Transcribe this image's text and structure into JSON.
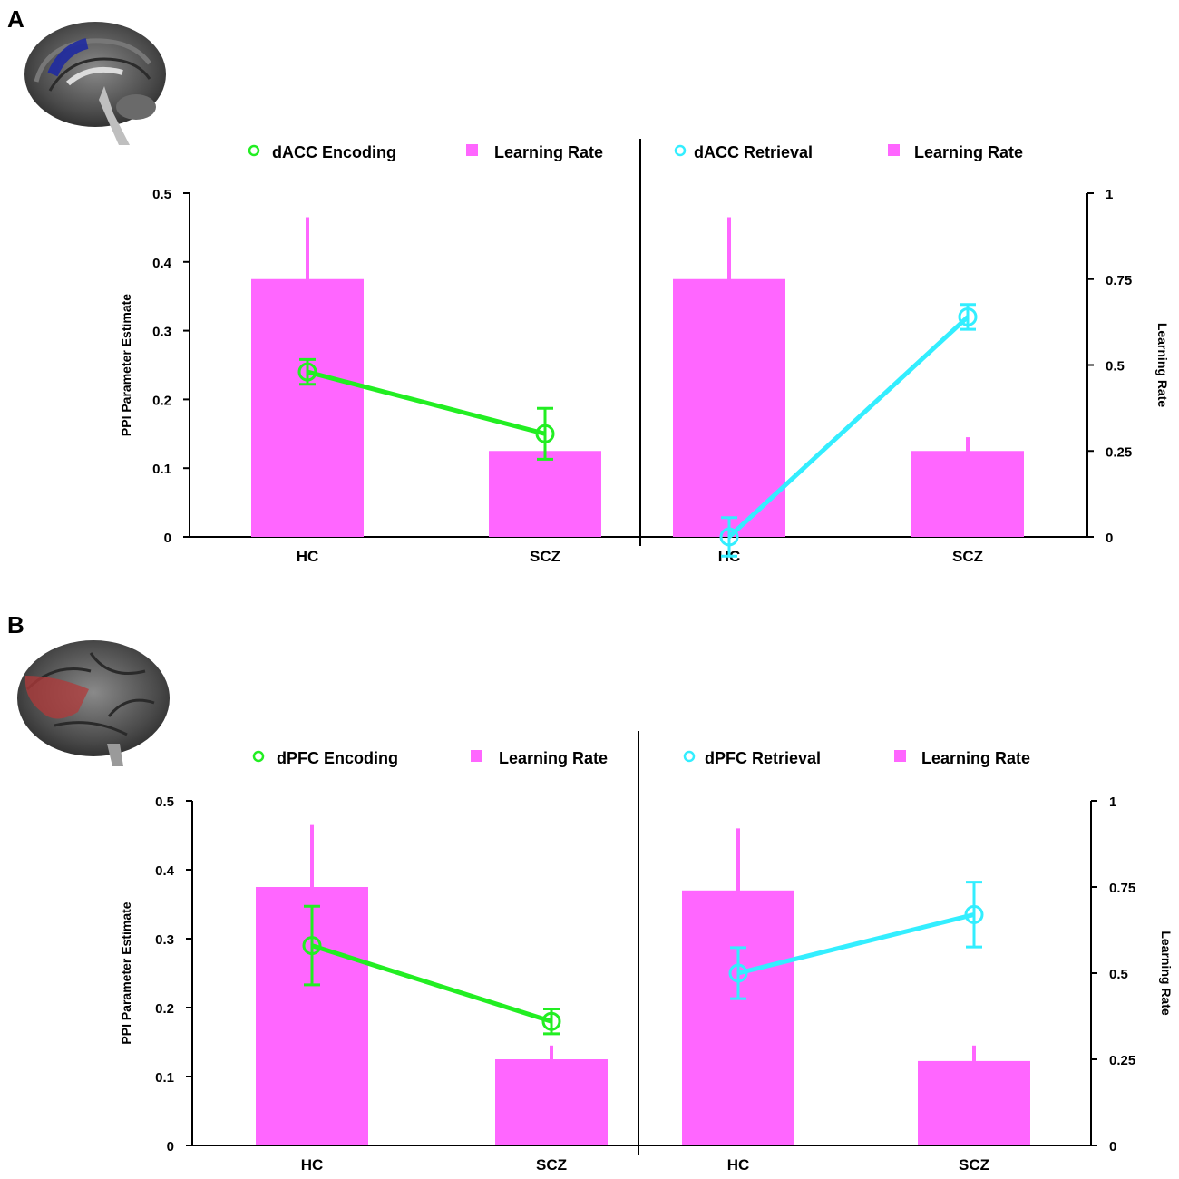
{
  "figure": {
    "panel_labels": [
      "A",
      "B"
    ]
  },
  "colors": {
    "bar": "#ff66ff",
    "encoding": "#22ee22",
    "retrieval": "#33eeff",
    "axis": "#000000"
  },
  "chart_data": [
    {
      "panel": "A",
      "type": "bar",
      "brain_region_icon": "medial-brain-dacc-icon",
      "categories": [
        "HC",
        "SCZ",
        "HC",
        "SCZ"
      ],
      "left_axis": {
        "title": "PPI Parameter Estimate",
        "ylim": [
          0,
          0.5
        ],
        "ticks": [
          "0",
          "0.1",
          "0.2",
          "0.3",
          "0.4",
          "0.5"
        ]
      },
      "right_axis": {
        "title": "Learning Rate",
        "ylim": [
          0,
          1
        ],
        "ticks": [
          "0",
          "0.25",
          "0.5",
          "0.75",
          "1"
        ]
      },
      "subplots": [
        {
          "line_legend": "dACC Encoding",
          "bar_legend": "Learning Rate",
          "line_color_key": "encoding",
          "bars": [
            {
              "value": 0.75,
              "err_low": 0.57,
              "err_high": 0.93
            },
            {
              "value": 0.25,
              "err_low": 0.25,
              "err_high": 0.25
            }
          ],
          "line": [
            {
              "value": 0.24,
              "err": 0.018
            },
            {
              "value": 0.15,
              "err": 0.037
            }
          ]
        },
        {
          "line_legend": "dACC Retrieval",
          "bar_legend": "Learning Rate",
          "line_color_key": "retrieval",
          "bars": [
            {
              "value": 0.75,
              "err_low": 0.57,
              "err_high": 0.93
            },
            {
              "value": 0.25,
              "err_low": 0.21,
              "err_high": 0.29
            }
          ],
          "line": [
            {
              "value": 0.0,
              "err": 0.028
            },
            {
              "value": 0.32,
              "err": 0.018
            }
          ]
        }
      ]
    },
    {
      "panel": "B",
      "type": "bar",
      "brain_region_icon": "lateral-brain-dpfc-icon",
      "categories": [
        "HC",
        "SCZ",
        "HC",
        "SCZ"
      ],
      "left_axis": {
        "title": "PPI Parameter Estimate",
        "ylim": [
          0,
          0.5
        ],
        "ticks": [
          "0",
          "0.1",
          "0.2",
          "0.3",
          "0.4",
          "0.5"
        ]
      },
      "right_axis": {
        "title": "Learning Rate",
        "ylim": [
          0,
          1
        ],
        "ticks": [
          "0",
          "0.25",
          "0.5",
          "0.75",
          "1"
        ]
      },
      "subplots": [
        {
          "line_legend": "dPFC Encoding",
          "bar_legend": "Learning Rate",
          "line_color_key": "encoding",
          "bars": [
            {
              "value": 0.75,
              "err_low": 0.57,
              "err_high": 0.93
            },
            {
              "value": 0.25,
              "err_low": 0.21,
              "err_high": 0.29
            }
          ],
          "line": [
            {
              "value": 0.29,
              "err": 0.057
            },
            {
              "value": 0.18,
              "err": 0.018
            }
          ]
        },
        {
          "line_legend": "dPFC Retrieval",
          "bar_legend": "Learning Rate",
          "line_color_key": "retrieval",
          "bars": [
            {
              "value": 0.74,
              "err_low": 0.56,
              "err_high": 0.92
            },
            {
              "value": 0.245,
              "err_low": 0.21,
              "err_high": 0.29
            }
          ],
          "line": [
            {
              "value": 0.25,
              "err": 0.037
            },
            {
              "value": 0.335,
              "err": 0.047
            }
          ]
        }
      ]
    }
  ]
}
